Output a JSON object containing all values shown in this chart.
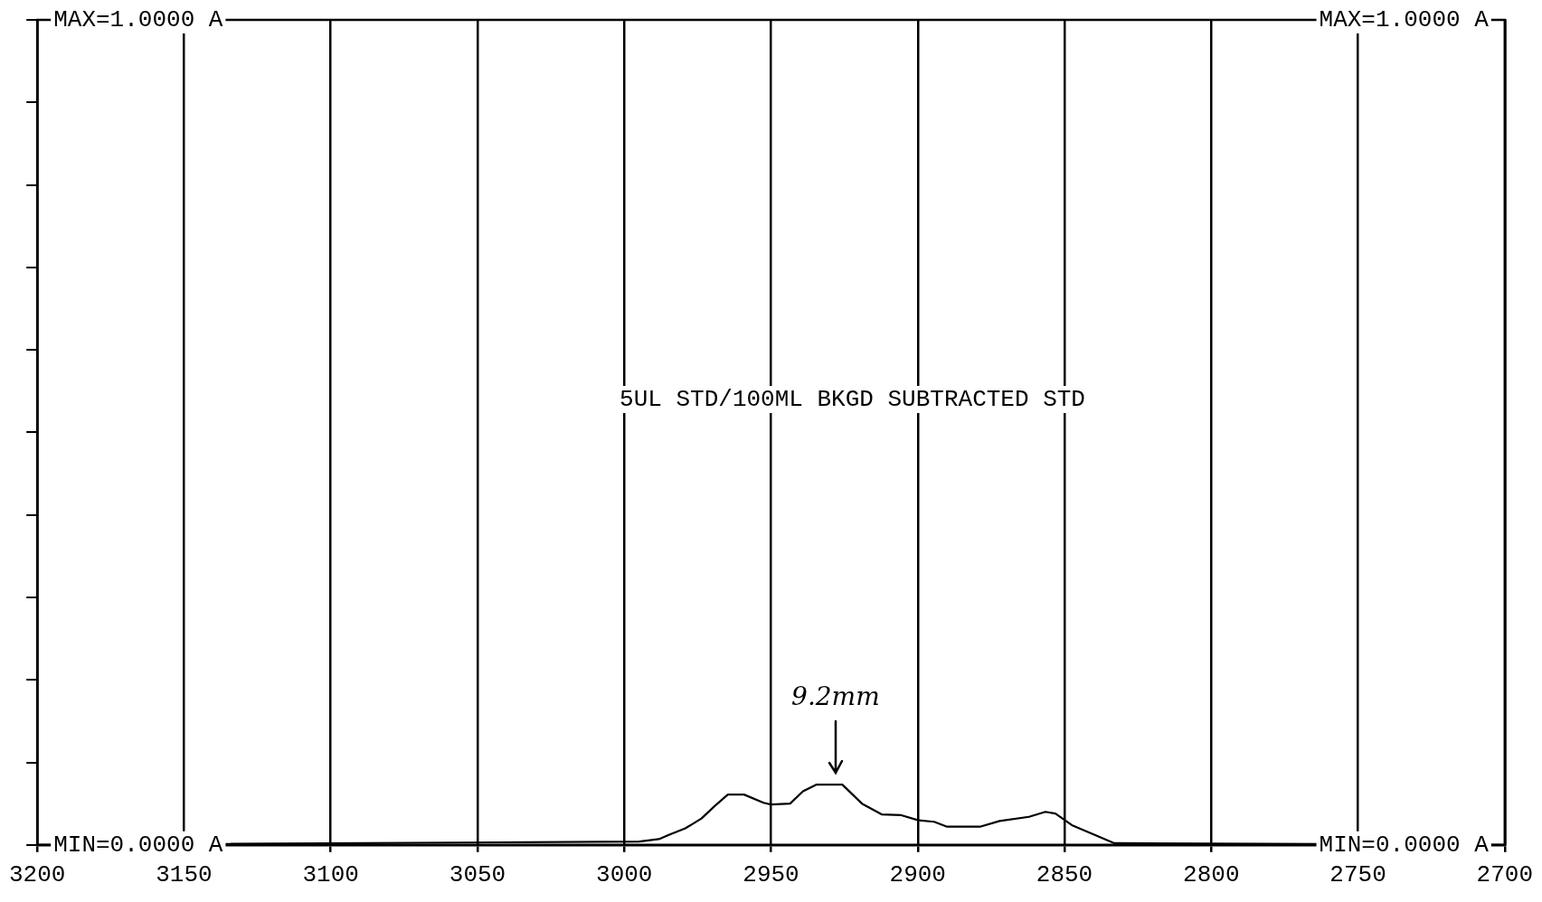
{
  "chart_data": {
    "type": "line",
    "x": [
      3200,
      2994.9,
      2988.2,
      2984.8,
      2979.2,
      2973.7,
      2969.2,
      2964.7,
      2959.2,
      2952.5,
      2950,
      2943.5,
      2939.1,
      2934.6,
      2925.7,
      2919.0,
      2912.3,
      2905.6,
      2900,
      2894.4,
      2890.0,
      2878.8,
      2872.1,
      2862.1,
      2856.5,
      2853.1,
      2847.5,
      2839.7,
      2833.0,
      2700
    ],
    "series": [
      {
        "color": "#000000",
        "values": [
          0,
          0.004,
          0.007,
          0.012,
          0.02,
          0.032,
          0.047,
          0.061,
          0.061,
          0.051,
          0.049,
          0.05,
          0.065,
          0.073,
          0.073,
          0.05,
          0.037,
          0.036,
          0.03,
          0.028,
          0.022,
          0.022,
          0.029,
          0.034,
          0.04,
          0.038,
          0.024,
          0.012,
          0.002,
          0
        ]
      }
    ],
    "xlim": [
      3200,
      2700
    ],
    "xticks": [
      3200,
      3150,
      3100,
      3050,
      3000,
      2950,
      2900,
      2850,
      2800,
      2750,
      2700
    ],
    "ylim": [
      0,
      1
    ],
    "yticks": [
      {
        "value": 0,
        "label": "MIN=0.0000 A"
      },
      {
        "value": 0.1,
        "label": null
      },
      {
        "value": 0.2,
        "label": null
      },
      {
        "value": 0.3,
        "label": null
      },
      {
        "value": 0.4,
        "label": null
      },
      {
        "value": 0.5,
        "label": null
      },
      {
        "value": 0.6,
        "label": null
      },
      {
        "value": 0.7,
        "label": null
      },
      {
        "value": 0.8,
        "label": null
      },
      {
        "value": 0.9,
        "label": null
      },
      {
        "value": 1,
        "label": "MAX=1.0000 A"
      }
    ],
    "y2lim": [
      0,
      1
    ],
    "y2ticks": [
      {
        "value": 0,
        "label": "MIN=0.0000 A"
      },
      {
        "value": 1,
        "label": "MAX=1.0000 A"
      }
    ],
    "grid": "x",
    "legend": false,
    "marker": "none",
    "line_style": "solid",
    "annotations": [
      "5UL STD/100ML BKGD SUBTRACTED STD",
      {
        "text": "9.2mm",
        "x": 2928,
        "y": 0.073
      }
    ]
  }
}
